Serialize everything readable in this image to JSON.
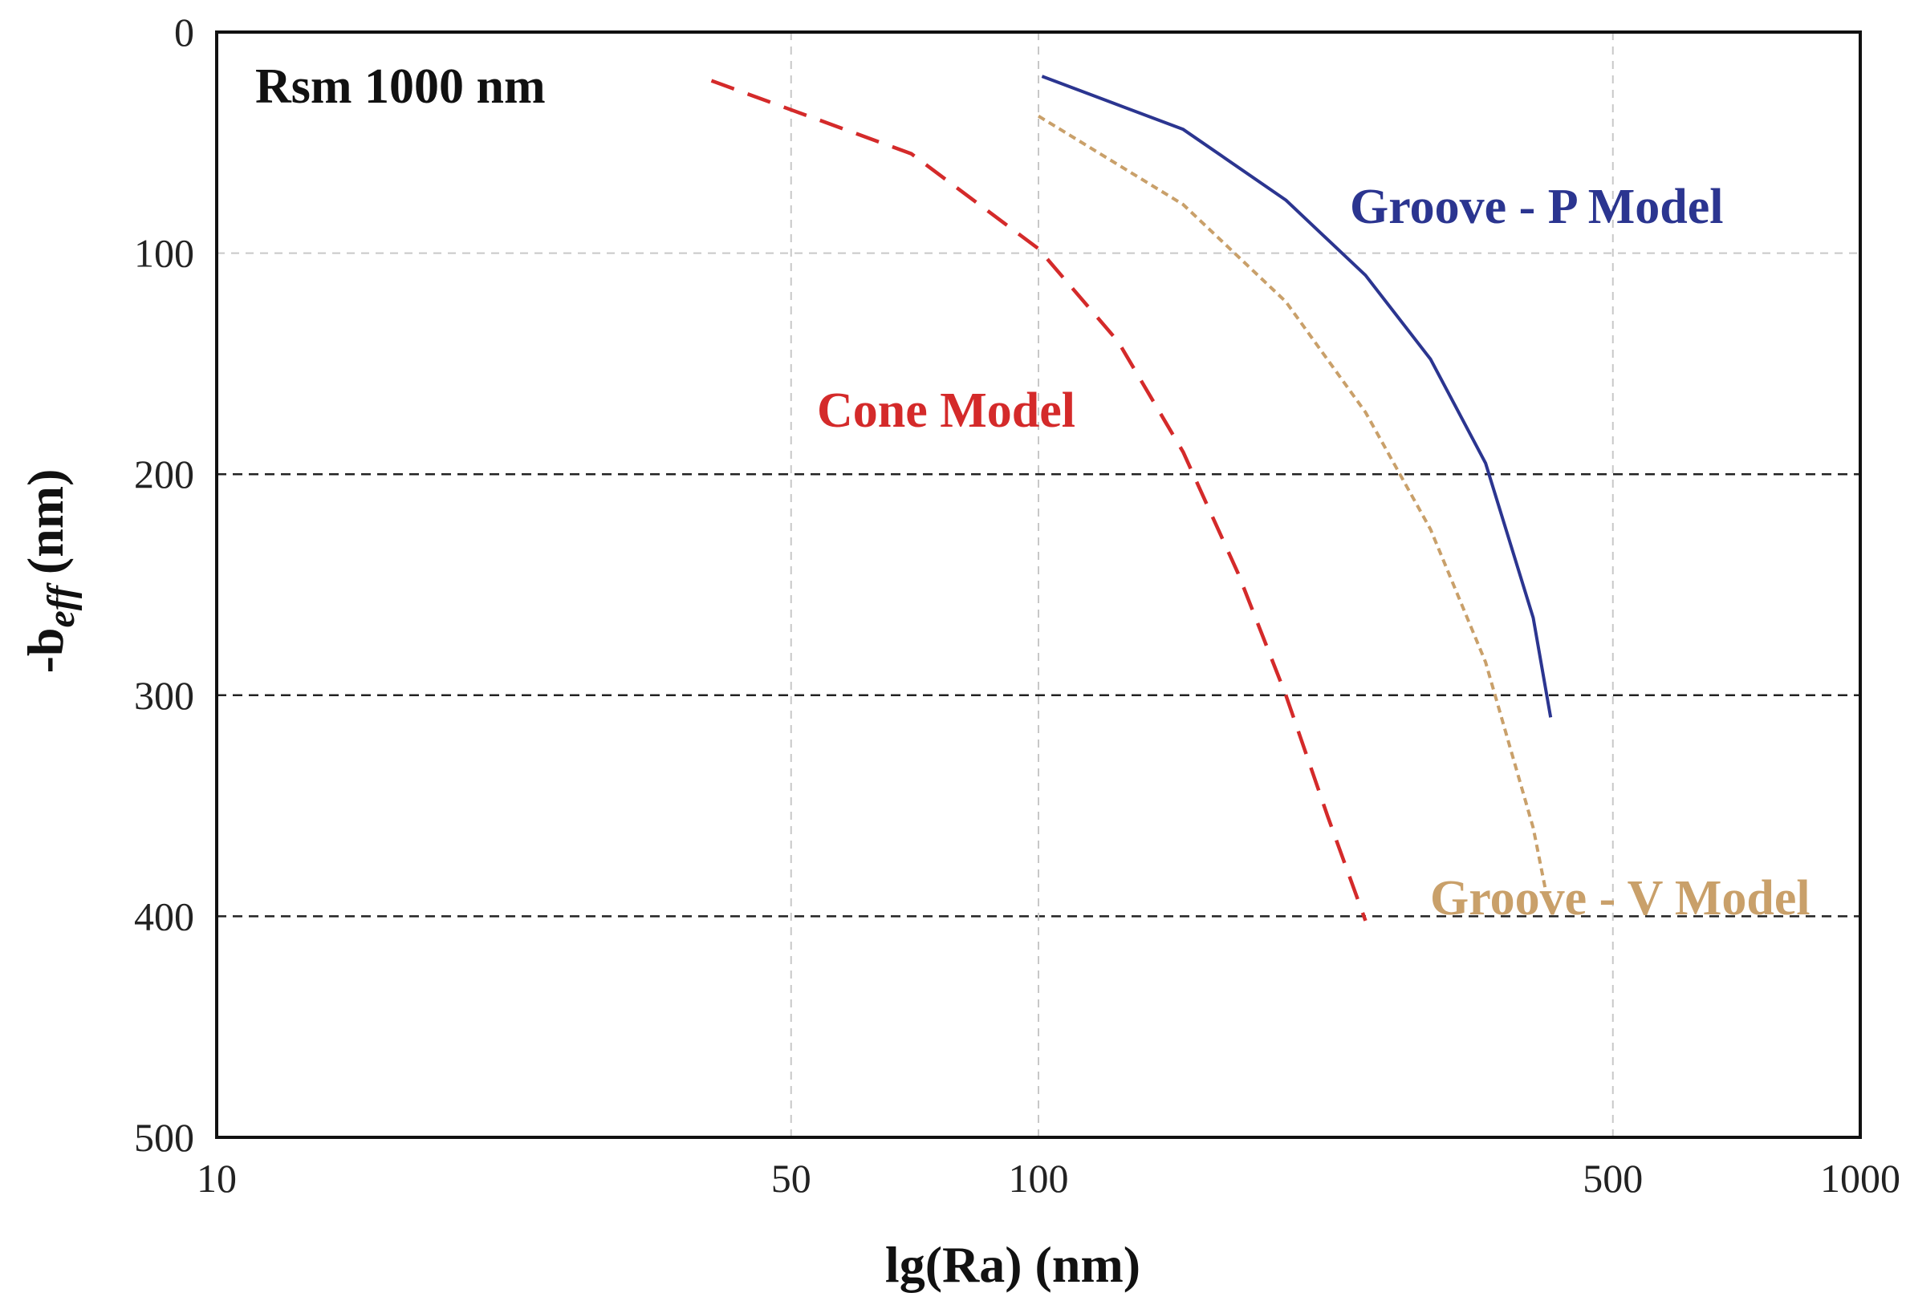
{
  "chart_data": {
    "type": "line",
    "title": "",
    "xlabel": "lg(Ra) (nm)",
    "ylabel_main": "-b",
    "ylabel_sub": "eff",
    "ylabel_unit": "(nm)",
    "xscale": "log",
    "xlim": [
      10,
      1000
    ],
    "ylim": [
      0,
      500
    ],
    "y_inverted": true,
    "x_ticks": [
      {
        "value": 10,
        "label": "10"
      },
      {
        "value": 50,
        "label": "50"
      },
      {
        "value": 100,
        "label": "100"
      },
      {
        "value": 500,
        "label": "500"
      },
      {
        "value": 1000,
        "label": "1000"
      }
    ],
    "y_ticks": [
      {
        "value": 0,
        "label": "0"
      },
      {
        "value": 100,
        "label": "100"
      },
      {
        "value": 200,
        "label": "200"
      },
      {
        "value": 300,
        "label": "300"
      },
      {
        "value": 400,
        "label": "400"
      },
      {
        "value": 500,
        "label": "500"
      }
    ],
    "annotation": "Rsm 1000 nm",
    "series": [
      {
        "name": "Groove - P Model",
        "color": "#2b3590",
        "style": "solid",
        "x": [
          101,
          150,
          200,
          250,
          300,
          350,
          400,
          420
        ],
        "y": [
          20,
          44,
          76,
          110,
          148,
          195,
          265,
          310
        ]
      },
      {
        "name": "Groove - V Model",
        "color": "#c9a06a",
        "style": "dotted",
        "x": [
          100,
          150,
          200,
          250,
          300,
          350,
          400,
          415
        ],
        "y": [
          38,
          78,
          122,
          172,
          225,
          285,
          360,
          390
        ]
      },
      {
        "name": "Cone Model",
        "color": "#d42a2a",
        "style": "dashed",
        "x": [
          40,
          70,
          100,
          125,
          150,
          175,
          200,
          225,
          250
        ],
        "y": [
          22,
          55,
          98,
          140,
          190,
          245,
          300,
          355,
          402
        ]
      }
    ]
  }
}
